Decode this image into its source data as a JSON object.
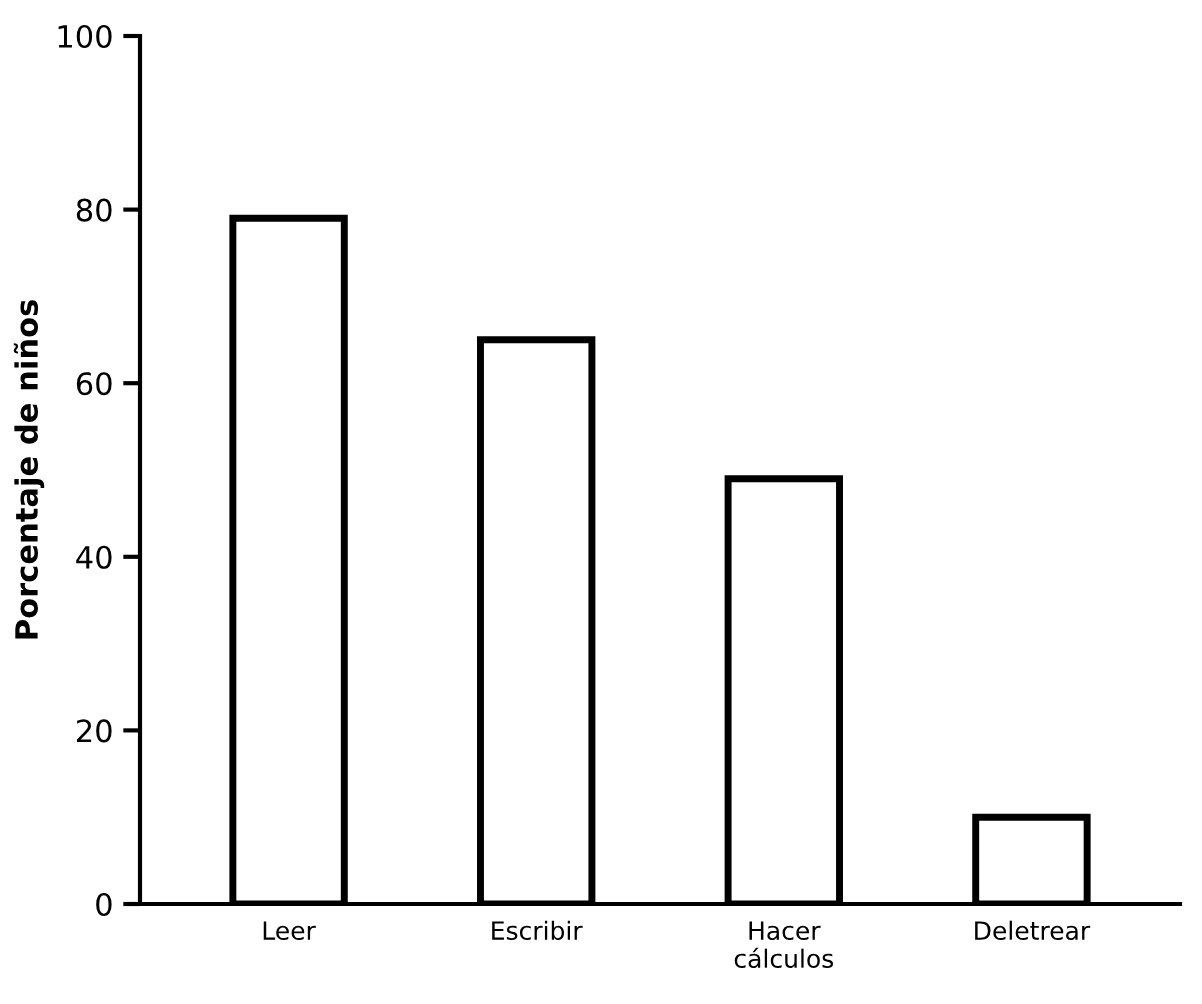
{
  "chart_data": {
    "type": "bar",
    "ylabel": "Porcentaje de niños",
    "categories": [
      "Leer",
      "Escribir",
      "Hacer\ncálculos",
      "Deletrear"
    ],
    "values": [
      79,
      65,
      49,
      10
    ],
    "color": "#ffffff",
    "ylim": [
      0,
      100
    ],
    "yticks": [
      0,
      20,
      40,
      60,
      80,
      100
    ],
    "grid": false
  }
}
